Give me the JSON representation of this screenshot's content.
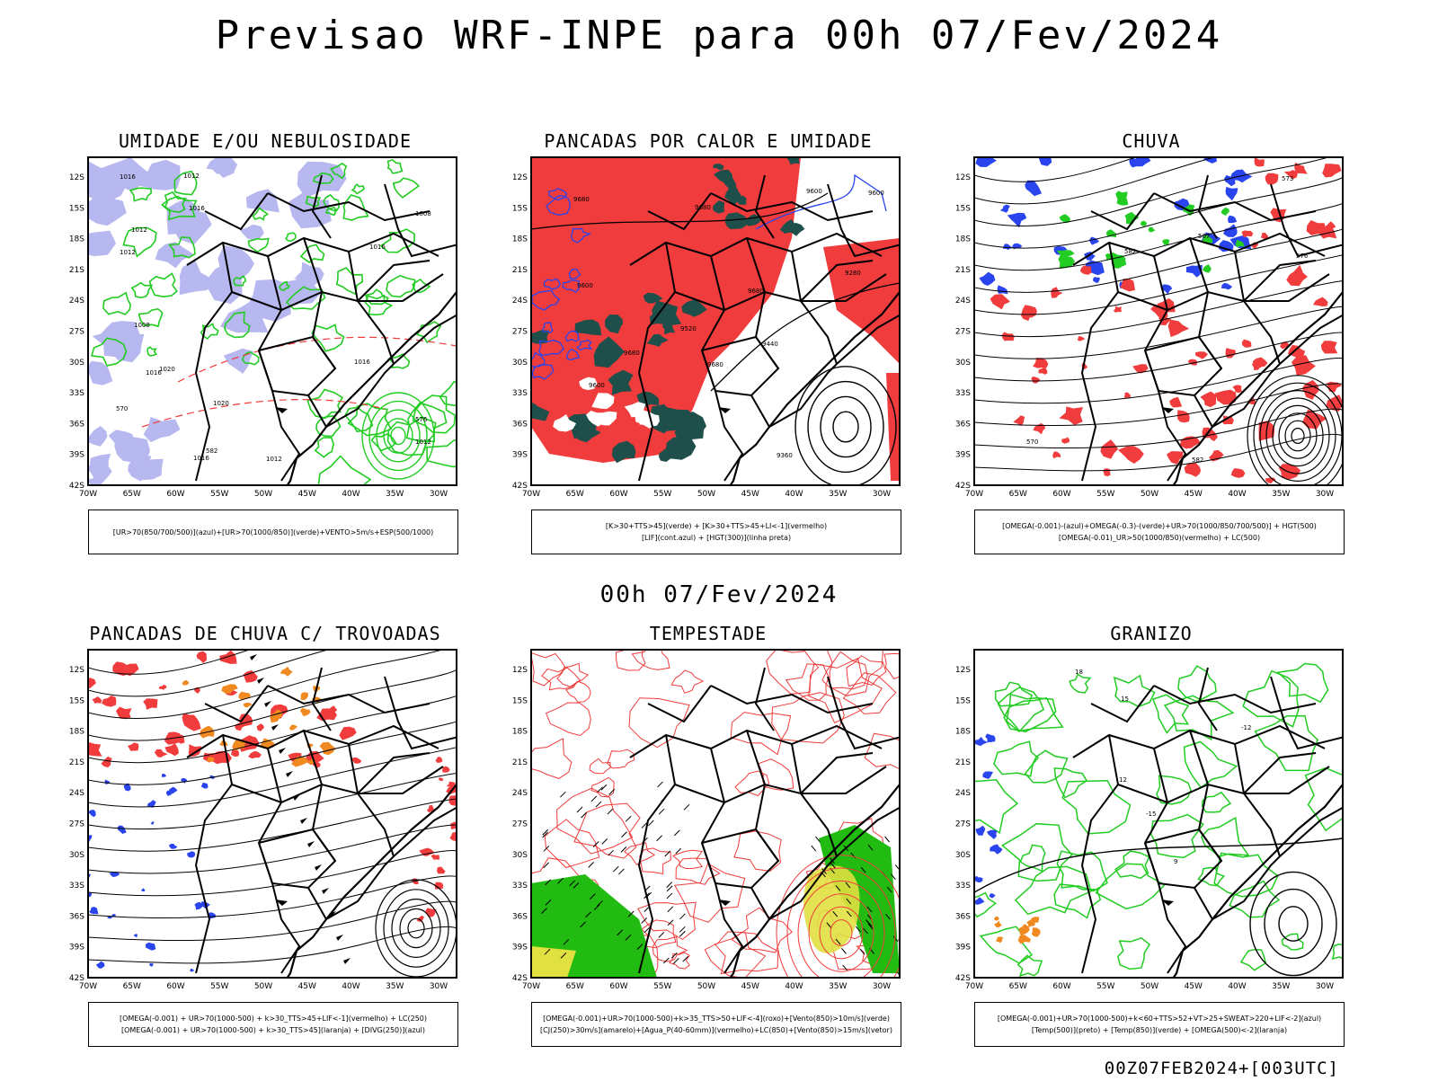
{
  "header": {
    "main_title": "Previsao WRF-INPE  para 00h 07/Fev/2024",
    "middle_title": "00h 07/Fev/2024",
    "footer": "00Z07FEB2024+[003UTC]"
  },
  "axes": {
    "lat_labels": [
      "12S",
      "15S",
      "18S",
      "21S",
      "24S",
      "27S",
      "30S",
      "33S",
      "36S",
      "39S",
      "42S"
    ],
    "lon_labels": [
      "70W",
      "65W",
      "60W",
      "55W",
      "50W",
      "45W",
      "40W",
      "35W",
      "30W"
    ]
  },
  "colors": {
    "light_blue": "#b8b8f0",
    "green": "#22cc22",
    "red": "#f03c3c",
    "dark_teal": "#1f4f4a",
    "blue": "#2a44ee",
    "orange": "#f08a20",
    "yellow": "#e0e040",
    "bright_green": "#22bb11"
  },
  "panels": [
    {
      "title": "UMIDADE E/OU NEBULOSIDADE",
      "legend": [
        "[UR>70(850/700/500)](azul)+[UR>70(1000/850)](verde)+VENTO>5m/s+ESP(500/1000)"
      ],
      "contour_labels": [
        "1016",
        "1012",
        "1016",
        "1020",
        "1012",
        "1012",
        "1016",
        "1016",
        "1012",
        "1008",
        "1008",
        "1020",
        "1016",
        "1016",
        "1012",
        "570",
        "576",
        "582"
      ]
    },
    {
      "title": "PANCADAS POR CALOR E UMIDADE",
      "legend": [
        "[K>30+TTS>45](verde) + [K>30+TTS>45+LI<-1](vermelho)",
        "[LIF](cont.azul) + [HGT(300)](linha preta)"
      ],
      "contour_labels": [
        "9680",
        "9680",
        "9680",
        "9680",
        "9680",
        "9600",
        "9600",
        "9600",
        "9440",
        "9360",
        "9280",
        "9520",
        "9600"
      ]
    },
    {
      "title": "CHUVA",
      "legend": [
        "[OMEGA(-0.001)-(azul)+OMEGA(-0.3)-(verde)+UR>70(1000/850/700/500)] + HGT(500)",
        "[OMEGA(-0.01)_UR>50(1000/850)(vermelho) + LC(500)"
      ],
      "contour_labels": [
        "582",
        "582",
        "576",
        "573",
        "570",
        "567"
      ]
    },
    {
      "title": "PANCADAS DE CHUVA C/ TROVOADAS",
      "legend": [
        "[OMEGA(-0.001) + UR>70(1000-500) + k>30_TTS>45+LIF<-1](vermelho) + LC(250)",
        "[OMEGA(-0.001) + UR>70(1000-500) + k>30_TTS>45](laranja) + [DIVG(250)](azul)"
      ],
      "contour_labels": []
    },
    {
      "title": "TEMPESTADE",
      "legend": [
        "[OMEGA(-0.001)+UR>70(1000-500)+k>35_TTS>50+LIF<-4](roxo)+[Vento(850)>10m/s](verde)",
        "[CJ(250)>30m/s](amarelo)+[Agua_P(40-60mm)](vermelho)+LC(850)+[Vento(850)>15m/s](vetor)"
      ],
      "contour_labels": []
    },
    {
      "title": "GRANIZO",
      "legend": [
        "[OMEGA(-0.001)+UR>70(1000-500)+k<60+TTS>52+VT>25+SWEAT>220+LIF<-2](azul)",
        "[Temp(500)](preto) + [Temp(850)](verde) + [OMEGA(500)<-2](laranja)"
      ],
      "contour_labels": [
        "-12",
        "-15",
        "15",
        "18",
        "12",
        "9"
      ]
    }
  ]
}
